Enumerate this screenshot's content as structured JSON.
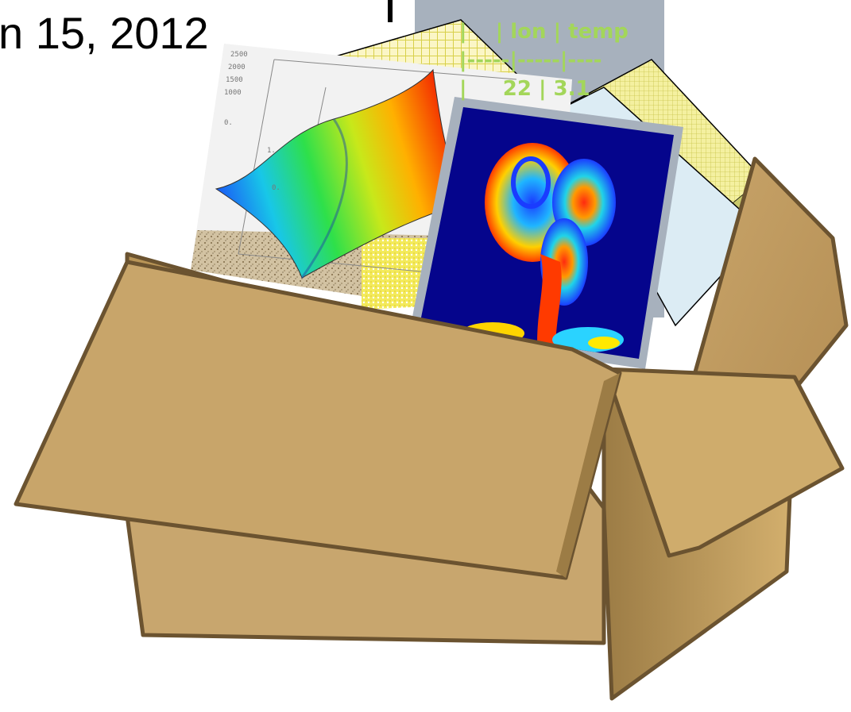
{
  "heading": {
    "date_fragment": "n 15, 2012"
  },
  "table_sheet": {
    "lines": [
      "|    | lon | temp",
      "|-----|-----|----",
      "|     22 | 3.1"
    ]
  },
  "plot_axis_labels": [
    "2500",
    "2000",
    "1500",
    "1000",
    "0.",
    "1.",
    "0."
  ],
  "colors": {
    "box_face": "#c8a66e",
    "box_outline": "#6b5330",
    "table_sheet_bg": "#a7b1bd",
    "table_text": "#a3d65a",
    "grid_paper": "#f4f0a0",
    "simulation_bg": "#05058c",
    "photo_frame": "#a7b1bd"
  }
}
